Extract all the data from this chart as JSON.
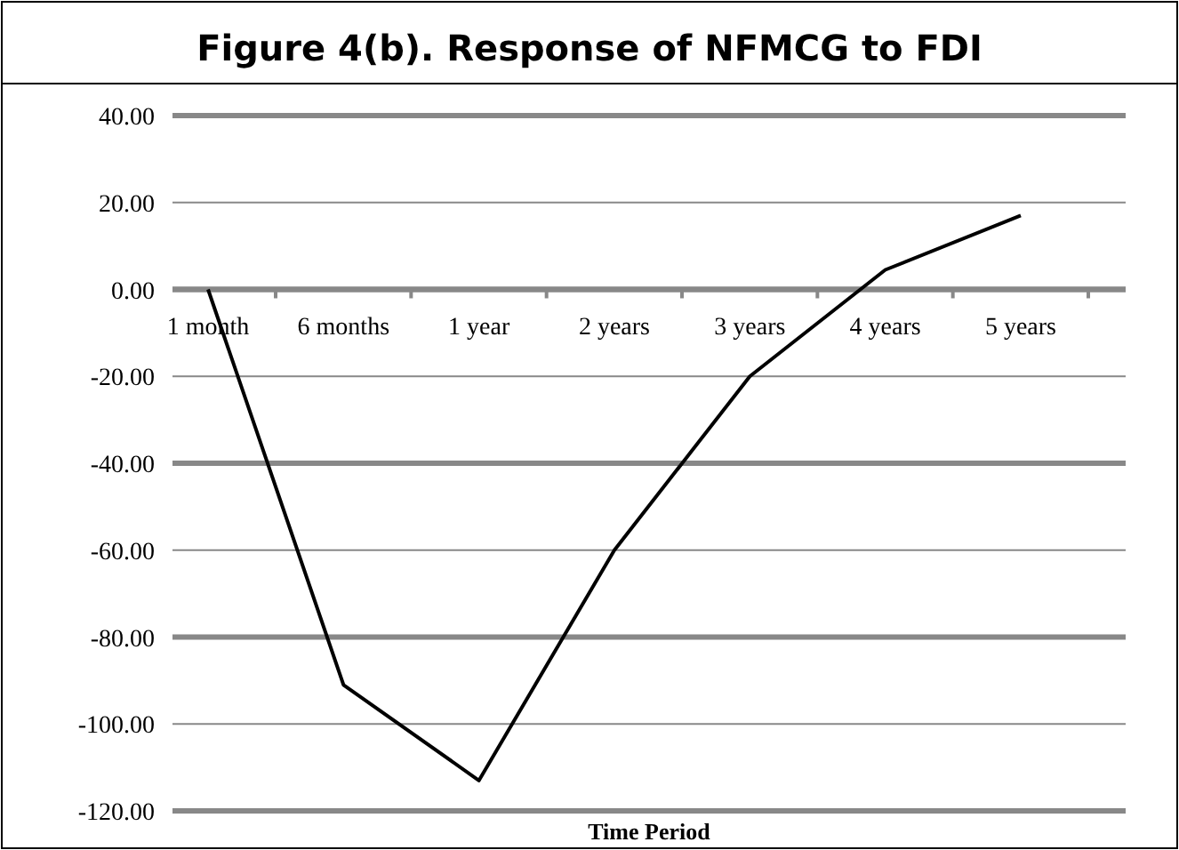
{
  "chart_data": {
    "type": "line",
    "title": "Figure 4(b). Response of NFMCG to FDI",
    "xlabel": "Time Period",
    "categories": [
      "1 month",
      "6 months",
      "1 year",
      "2 years",
      "3 years",
      "4 years",
      "5 years"
    ],
    "series": [
      {
        "color": "#000000",
        "values": [
          0,
          -91,
          -113,
          -60,
          -20,
          4.5,
          17
        ]
      }
    ],
    "ylim": [
      -120,
      40
    ],
    "yticks": [
      {
        "value": -120,
        "label": "-120.00"
      },
      {
        "value": -100,
        "label": "-100.00"
      },
      {
        "value": -80,
        "label": "-80.00"
      },
      {
        "value": -60,
        "label": "-60.00"
      },
      {
        "value": -40,
        "label": "-40.00"
      },
      {
        "value": -20,
        "label": "-20.00"
      },
      {
        "value": 0,
        "label": "0.00"
      },
      {
        "value": 20,
        "label": "20.00"
      },
      {
        "value": 40,
        "label": "40.00"
      }
    ],
    "grid": "y",
    "marker": "none",
    "line_style": "solid"
  }
}
